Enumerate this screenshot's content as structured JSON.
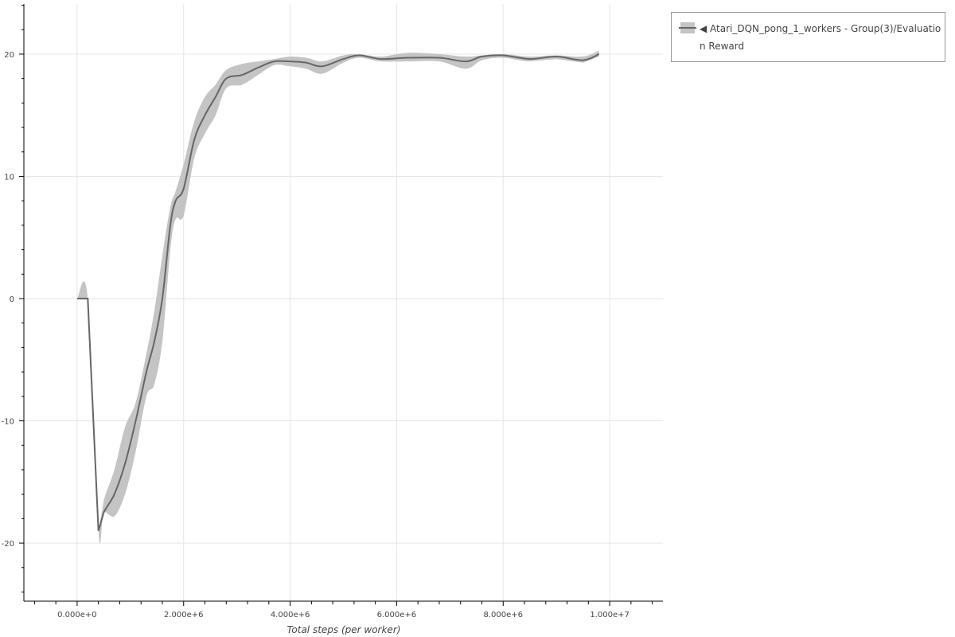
{
  "chart_data": {
    "type": "line",
    "title": "",
    "xlabel": "Total steps (per worker)",
    "ylabel": "",
    "xlim": [
      -1000000,
      11000000
    ],
    "ylim": [
      -24.75,
      24.1
    ],
    "x_ticks": [
      0,
      2000000,
      4000000,
      6000000,
      8000000,
      10000000
    ],
    "x_tick_labels": [
      "0.000e+0",
      "2.000e+6",
      "4.000e+6",
      "6.000e+6",
      "8.000e+6",
      "1.000e+7"
    ],
    "y_ticks": [
      -20,
      -10,
      0,
      10,
      20
    ],
    "y_tick_labels": [
      "-20",
      "-10",
      "0",
      "10",
      "20"
    ],
    "grid": true,
    "legend_position": "right-outside-top",
    "colors": {
      "line": "#666666",
      "band": "#c4c4c4",
      "grid": "#e5e5e5"
    },
    "series": [
      {
        "name": "◀ Atari_DQN_pong_1_workers - Group(3)/Evaluation Reward",
        "x": [
          0,
          200000,
          400000,
          500000,
          700000,
          900000,
          1100000,
          1300000,
          1450000,
          1600000,
          1750000,
          1850000,
          2000000,
          2200000,
          2400000,
          2600000,
          2800000,
          3100000,
          3400000,
          3700000,
          4000000,
          4300000,
          4600000,
          5000000,
          5300000,
          5700000,
          6200000,
          6800000,
          7300000,
          7600000,
          8000000,
          8500000,
          9000000,
          9500000,
          9800000
        ],
        "mean": [
          0,
          0,
          -19,
          -17.5,
          -16,
          -13.5,
          -10,
          -6,
          -3.5,
          0,
          6,
          8,
          9,
          13,
          15,
          16.5,
          18,
          18.3,
          18.9,
          19.4,
          19.4,
          19.3,
          19.0,
          19.6,
          19.9,
          19.6,
          19.7,
          19.7,
          19.4,
          19.8,
          19.9,
          19.6,
          19.8,
          19.5,
          20.0
        ],
        "lower": [
          0,
          0,
          -19,
          -17.5,
          -17.8,
          -16,
          -12.5,
          -8,
          -7,
          -3.5,
          4,
          6.5,
          6.8,
          11.5,
          13.5,
          15,
          17.2,
          17.5,
          18.3,
          19.1,
          19.0,
          18.8,
          18.4,
          19.3,
          19.7,
          19.4,
          19.4,
          19.4,
          18.8,
          19.5,
          19.7,
          19.4,
          19.6,
          19.3,
          19.8
        ],
        "upper": [
          0,
          0,
          -19,
          -16.5,
          -14,
          -10.5,
          -8.5,
          -4.5,
          -1,
          3.5,
          7.5,
          8.8,
          11,
          14.5,
          16.5,
          17.5,
          18.7,
          19.2,
          19.4,
          19.6,
          19.8,
          19.7,
          19.4,
          19.9,
          20.0,
          19.8,
          20.1,
          20.0,
          19.8,
          19.9,
          20.0,
          19.8,
          19.9,
          19.8,
          20.3
        ]
      }
    ]
  }
}
